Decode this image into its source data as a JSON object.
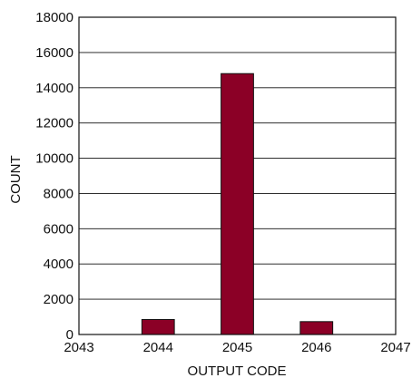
{
  "chart_data": {
    "type": "bar",
    "xlabel": "OUTPUT CODE",
    "ylabel": "COUNT",
    "x_ticks": [
      "2043",
      "2044",
      "2045",
      "2046",
      "2047"
    ],
    "y_ticks": [
      "0",
      "2000",
      "4000",
      "6000",
      "8000",
      "10000",
      "12000",
      "14000",
      "16000",
      "18000"
    ],
    "xlim": [
      2043,
      2047
    ],
    "ylim": [
      0,
      18000
    ],
    "categories": [
      "2044",
      "2045",
      "2046"
    ],
    "x": [
      2044,
      2045,
      2046
    ],
    "values": [
      850,
      14800,
      730
    ],
    "grid": "horizontal",
    "bar_color": "#8B0026",
    "legend": "none"
  }
}
